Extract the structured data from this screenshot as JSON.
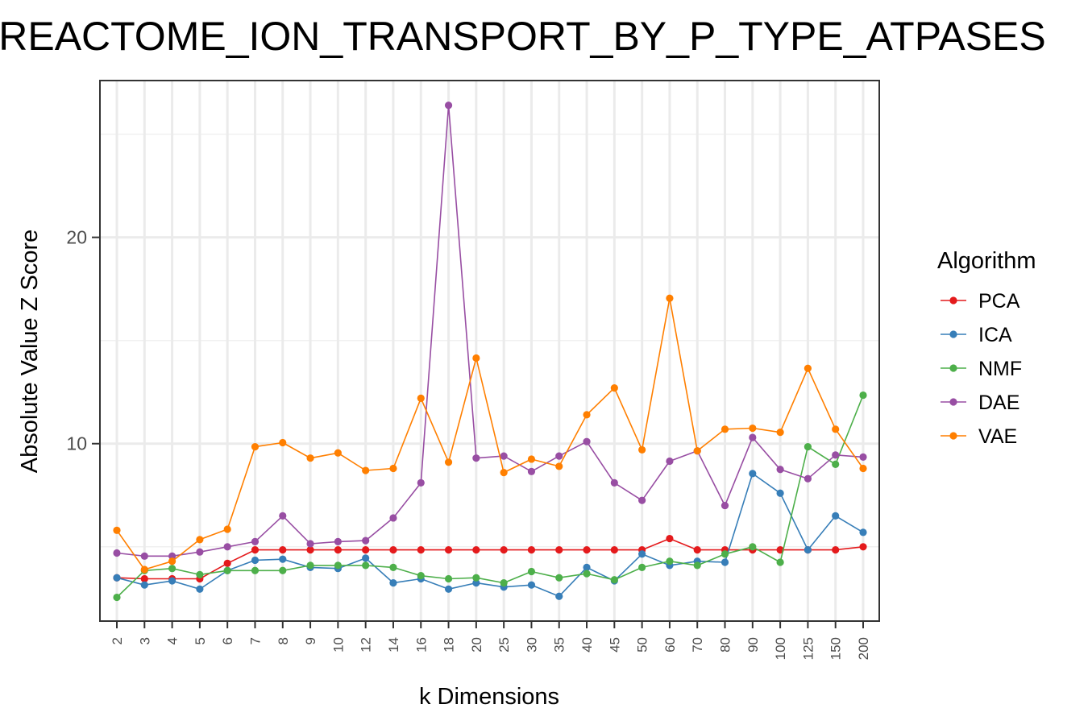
{
  "chart_data": {
    "type": "line",
    "title": "REACTOME_ION_TRANSPORT_BY_P_TYPE_ATPASES",
    "xlabel": "k Dimensions",
    "ylabel": "Absolute Value Z Score",
    "categories": [
      "2",
      "3",
      "4",
      "5",
      "6",
      "7",
      "8",
      "9",
      "10",
      "12",
      "14",
      "16",
      "18",
      "20",
      "25",
      "30",
      "35",
      "40",
      "45",
      "50",
      "60",
      "70",
      "80",
      "90",
      "100",
      "125",
      "150",
      "200"
    ],
    "ylim": [
      1.4,
      27.6
    ],
    "yticks": [
      10,
      20
    ],
    "ygrid_minor": [
      5,
      15,
      25
    ],
    "grid": true,
    "legend": {
      "title": "Algorithm",
      "placement": "right"
    },
    "series": [
      {
        "name": "PCA",
        "color": "#E41A1C",
        "values": [
          3.5,
          3.45,
          3.45,
          3.45,
          4.2,
          4.85,
          4.85,
          4.85,
          4.85,
          4.85,
          4.85,
          4.85,
          4.85,
          4.85,
          4.85,
          4.85,
          4.85,
          4.85,
          4.85,
          4.85,
          5.4,
          4.85,
          4.85,
          4.85,
          4.85,
          4.85,
          4.85,
          5.0
        ]
      },
      {
        "name": "ICA",
        "color": "#377EB8",
        "values": [
          3.5,
          3.15,
          3.35,
          2.95,
          3.85,
          4.35,
          4.4,
          4.0,
          3.95,
          4.45,
          3.25,
          3.45,
          2.95,
          3.25,
          3.05,
          3.15,
          2.6,
          4.0,
          3.35,
          4.65,
          4.1,
          4.3,
          4.25,
          8.55,
          7.6,
          4.85,
          6.5,
          5.7
        ]
      },
      {
        "name": "NMF",
        "color": "#4DAF4A",
        "values": [
          2.55,
          3.85,
          3.95,
          3.65,
          3.85,
          3.85,
          3.85,
          4.1,
          4.1,
          4.1,
          4.0,
          3.6,
          3.45,
          3.5,
          3.25,
          3.8,
          3.5,
          3.7,
          3.4,
          4.0,
          4.3,
          4.1,
          4.65,
          5.0,
          4.25,
          9.85,
          9.0,
          12.35
        ]
      },
      {
        "name": "DAE",
        "color": "#984EA3",
        "values": [
          4.7,
          4.55,
          4.55,
          4.75,
          5.0,
          5.25,
          6.5,
          5.15,
          5.25,
          5.3,
          6.4,
          8.1,
          26.4,
          9.3,
          9.4,
          8.65,
          9.4,
          10.1,
          8.1,
          7.25,
          9.15,
          9.65,
          7.0,
          10.3,
          8.75,
          8.3,
          9.45,
          9.35
        ]
      },
      {
        "name": "VAE",
        "color": "#FF7F00",
        "values": [
          5.8,
          3.9,
          4.3,
          5.35,
          5.85,
          9.85,
          10.05,
          9.3,
          9.55,
          8.7,
          8.8,
          12.2,
          9.1,
          14.15,
          8.6,
          9.25,
          8.9,
          11.4,
          12.7,
          9.7,
          17.05,
          9.65,
          10.7,
          10.75,
          10.55,
          13.65,
          10.7,
          8.8
        ]
      }
    ]
  }
}
